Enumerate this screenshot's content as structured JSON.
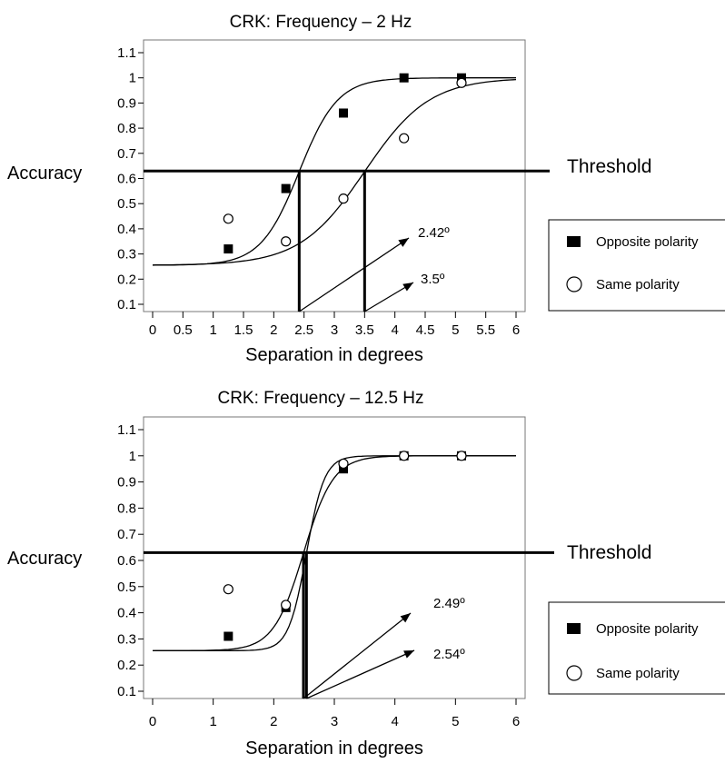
{
  "chart_data": [
    {
      "type": "scatter",
      "title": "CRK: Frequency – 2 Hz",
      "xlabel": "Separation in degrees",
      "ylabel": "Accuracy",
      "xlim": [
        0,
        6
      ],
      "ylim": [
        0.1,
        1.1
      ],
      "xticks": [
        "0",
        "0.5",
        "1",
        "1.5",
        "2",
        "2.5",
        "3",
        "3.5",
        "4",
        "4.5",
        "5",
        "5.5",
        "6"
      ],
      "xtick_values": [
        0,
        0.5,
        1,
        1.5,
        2,
        2.5,
        3,
        3.5,
        4,
        4.5,
        5,
        5.5,
        6
      ],
      "yticks": [
        "0.1",
        "0.2",
        "0.3",
        "0.4",
        "0.5",
        "0.6",
        "0.7",
        "0.8",
        "0.9",
        "1",
        "1.1"
      ],
      "ytick_values": [
        0.1,
        0.2,
        0.3,
        0.4,
        0.5,
        0.6,
        0.7,
        0.8,
        0.9,
        1,
        1.1
      ],
      "threshold": {
        "label": "Threshold",
        "y": 0.63
      },
      "legend": {
        "placement": "right"
      },
      "series": [
        {
          "name": "Opposite polarity",
          "marker": "filled-square",
          "x": [
            1.25,
            2.2,
            3.15,
            4.15,
            5.1
          ],
          "y": [
            0.32,
            0.56,
            0.86,
            1.0,
            1.0
          ],
          "fit": {
            "x0": 2.42,
            "slope": 2.1
          },
          "threshold_x": 2.42,
          "threshold_label": "2.42º"
        },
        {
          "name": "Same polarity",
          "marker": "open-circle",
          "x": [
            1.25,
            2.2,
            3.15,
            4.15,
            5.1
          ],
          "y": [
            0.44,
            0.35,
            0.52,
            0.76,
            0.98
          ],
          "fit": {
            "x0": 3.5,
            "slope": 1.25
          },
          "threshold_x": 3.5,
          "threshold_label": "3.5º"
        }
      ]
    },
    {
      "type": "scatter",
      "title": "CRK: Frequency – 12.5 Hz",
      "xlabel": "Separation in degrees",
      "ylabel": "Accuracy",
      "xlim": [
        0,
        6
      ],
      "ylim": [
        0.1,
        1.1
      ],
      "xticks": [
        "0",
        "1",
        "2",
        "3",
        "4",
        "5",
        "6"
      ],
      "xtick_values": [
        0,
        1,
        2,
        3,
        4,
        5,
        6
      ],
      "yticks": [
        "0.1",
        "0.2",
        "0.3",
        "0.4",
        "0.5",
        "0.6",
        "0.7",
        "0.8",
        "0.9",
        "1",
        "1.1"
      ],
      "ytick_values": [
        0.1,
        0.2,
        0.3,
        0.4,
        0.5,
        0.6,
        0.7,
        0.8,
        0.9,
        1,
        1.1
      ],
      "threshold": {
        "label": "Threshold",
        "y": 0.63
      },
      "legend": {
        "placement": "right"
      },
      "series": [
        {
          "name": "Opposite polarity",
          "marker": "filled-square",
          "x": [
            1.25,
            2.2,
            3.15,
            4.15,
            5.1
          ],
          "y": [
            0.31,
            0.42,
            0.95,
            1.0,
            1.0
          ],
          "fit": {
            "x0": 2.49,
            "slope": 2.7
          },
          "threshold_x": 2.49,
          "threshold_label": "2.49º"
        },
        {
          "name": "Same polarity",
          "marker": "open-circle",
          "x": [
            1.25,
            2.2,
            3.15,
            4.15,
            5.1
          ],
          "y": [
            0.49,
            0.43,
            0.97,
            1.0,
            1.0
          ],
          "fit": {
            "x0": 2.54,
            "slope": 4.5
          },
          "threshold_x": 2.54,
          "threshold_label": "2.54º"
        }
      ]
    }
  ]
}
